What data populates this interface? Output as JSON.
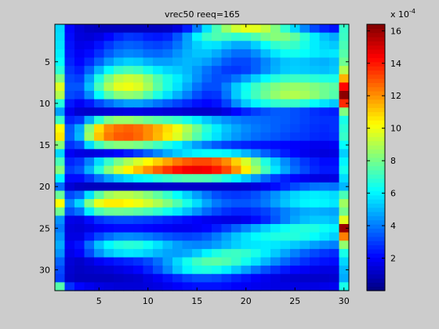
{
  "chart_data": {
    "type": "heatmap",
    "title": "vrec50 reeq=165",
    "xlim": [
      0.5,
      30.5
    ],
    "ylim": [
      0.5,
      32.5
    ],
    "y_reversed": true,
    "x_ticks": [
      5,
      10,
      15,
      20,
      25,
      30
    ],
    "x_tick_labels": [
      "5",
      "10",
      "15",
      "20",
      "25",
      "30"
    ],
    "y_ticks": [
      5,
      10,
      15,
      20,
      25,
      30
    ],
    "y_tick_labels": [
      "5",
      "10",
      "15",
      "20",
      "25",
      "30"
    ],
    "colormap": "jet",
    "colorbar": {
      "clim": [
        0,
        16.4
      ],
      "ticks": [
        2,
        4,
        6,
        8,
        10,
        12,
        14,
        16
      ],
      "tick_labels": [
        "2",
        "4",
        "6",
        "8",
        "10",
        "12",
        "14",
        "16"
      ],
      "exponent_base": "x 10",
      "exponent_power": "-4"
    },
    "grid": false,
    "matrix": [
      [
        5.5,
        2.1,
        1.4,
        1.1,
        1.0,
        1.0,
        1.0,
        1.0,
        1.0,
        1.0,
        1.0,
        1.1,
        1.5,
        2.5,
        4.0,
        5.7,
        7.3,
        8.6,
        9.5,
        9.9,
        9.8,
        9.2,
        8.2,
        6.9,
        5.5,
        4.2,
        3.2,
        2.6,
        2.3,
        7.0
      ],
      [
        5.6,
        2.2,
        1.5,
        1.4,
        1.6,
        2.1,
        2.6,
        2.9,
        2.8,
        2.5,
        2.4,
        2.6,
        3.4,
        4.6,
        6.0,
        7.0,
        7.4,
        7.2,
        6.9,
        7.0,
        7.4,
        8.0,
        8.3,
        8.2,
        7.7,
        6.8,
        5.9,
        5.2,
        4.8,
        7.1
      ],
      [
        5.7,
        2.3,
        1.7,
        1.8,
        2.3,
        2.9,
        3.4,
        3.6,
        3.5,
        3.2,
        3.1,
        3.3,
        3.9,
        4.7,
        5.4,
        5.8,
        5.7,
        5.2,
        4.8,
        4.8,
        5.4,
        6.2,
        6.9,
        7.2,
        7.0,
        6.5,
        5.9,
        5.5,
        5.3,
        7.3
      ],
      [
        5.9,
        2.4,
        1.9,
        2.2,
        2.8,
        3.5,
        4.0,
        4.2,
        4.1,
        3.8,
        3.7,
        3.9,
        4.4,
        4.9,
        5.2,
        5.2,
        4.8,
        4.2,
        3.8,
        3.8,
        4.3,
        5.1,
        5.8,
        6.3,
        6.4,
        6.2,
        5.9,
        5.7,
        5.8,
        7.5
      ],
      [
        6.2,
        2.6,
        2.1,
        2.7,
        3.6,
        4.5,
        5.1,
        5.4,
        5.3,
        4.9,
        4.6,
        4.6,
        4.8,
        5.0,
        4.9,
        4.6,
        4.1,
        3.5,
        3.2,
        3.2,
        3.6,
        4.2,
        4.8,
        5.2,
        5.3,
        5.2,
        5.0,
        4.9,
        5.1,
        7.9
      ],
      [
        6.8,
        2.9,
        2.5,
        3.6,
        5.0,
        6.2,
        7.0,
        7.3,
        7.1,
        6.5,
        5.9,
        5.5,
        5.3,
        5.0,
        4.5,
        3.9,
        3.4,
        3.0,
        2.9,
        3.1,
        3.6,
        4.3,
        4.9,
        5.3,
        5.4,
        5.3,
        5.2,
        5.1,
        5.3,
        9.0
      ],
      [
        8.2,
        3.2,
        3.0,
        4.6,
        6.6,
        8.1,
        9.1,
        9.4,
        9.2,
        8.4,
        7.4,
        6.6,
        5.9,
        5.2,
        4.4,
        3.7,
        3.3,
        3.4,
        3.9,
        4.6,
        5.4,
        6.1,
        6.7,
        7.0,
        7.1,
        7.0,
        6.8,
        6.6,
        6.5,
        11.5
      ],
      [
        9.7,
        3.4,
        3.4,
        5.1,
        7.3,
        8.9,
        9.8,
        10.0,
        9.7,
        8.8,
        7.6,
        6.6,
        5.7,
        4.8,
        3.9,
        3.3,
        3.3,
        4.1,
        5.3,
        6.3,
        7.1,
        7.7,
        8.2,
        8.5,
        8.6,
        8.5,
        8.2,
        7.9,
        7.6,
        14.3
      ],
      [
        9.0,
        3.2,
        3.0,
        4.3,
        6.2,
        7.5,
        8.3,
        8.5,
        8.3,
        7.5,
        6.6,
        5.7,
        4.9,
        4.1,
        3.3,
        2.8,
        2.9,
        3.9,
        5.3,
        6.4,
        7.2,
        7.9,
        8.5,
        8.9,
        9.0,
        8.8,
        8.4,
        7.9,
        7.5,
        16.2
      ],
      [
        6.7,
        2.4,
        1.9,
        2.4,
        3.2,
        3.8,
        4.3,
        4.6,
        4.6,
        4.3,
        3.9,
        3.5,
        3.1,
        2.7,
        2.3,
        2.1,
        2.3,
        3.1,
        4.3,
        5.3,
        6.0,
        6.5,
        6.9,
        7.1,
        7.0,
        6.7,
        6.2,
        5.7,
        5.3,
        13.7
      ],
      [
        4.6,
        1.8,
        1.3,
        1.2,
        1.3,
        1.4,
        1.5,
        1.6,
        1.6,
        1.5,
        1.5,
        1.4,
        1.4,
        1.3,
        1.2,
        1.2,
        1.3,
        1.6,
        2.1,
        2.6,
        3.0,
        3.3,
        3.5,
        3.5,
        3.3,
        3.1,
        2.8,
        2.6,
        2.5,
        8.2
      ],
      [
        7.1,
        2.6,
        2.9,
        4.8,
        6.8,
        8.1,
        8.6,
        8.6,
        8.3,
        7.9,
        7.6,
        7.3,
        7.0,
        6.5,
        5.9,
        5.3,
        4.8,
        4.4,
        4.1,
        3.9,
        3.8,
        3.7,
        3.6,
        3.5,
        3.3,
        3.1,
        2.9,
        2.8,
        2.8,
        6.5
      ],
      [
        10.2,
        3.5,
        4.8,
        8.3,
        10.8,
        12.1,
        12.6,
        12.8,
        12.6,
        12.1,
        11.5,
        10.8,
        10.0,
        9.0,
        7.9,
        6.8,
        5.9,
        5.2,
        4.7,
        4.3,
        4.0,
        3.8,
        3.6,
        3.4,
        3.2,
        3.0,
        2.8,
        2.7,
        2.8,
        6.8
      ],
      [
        10.6,
        3.6,
        5.0,
        8.7,
        11.2,
        12.4,
        12.9,
        13.0,
        12.7,
        12.1,
        11.4,
        10.6,
        9.7,
        8.6,
        7.5,
        6.5,
        5.7,
        5.0,
        4.5,
        4.1,
        3.8,
        3.6,
        3.4,
        3.2,
        3.0,
        2.9,
        2.7,
        2.6,
        2.7,
        7.0
      ],
      [
        8.3,
        2.8,
        3.3,
        5.6,
        7.2,
        8.0,
        8.3,
        8.3,
        8.1,
        7.7,
        7.2,
        6.6,
        6.0,
        5.3,
        4.6,
        4.0,
        3.5,
        3.1,
        2.8,
        2.6,
        2.4,
        2.3,
        2.2,
        2.1,
        2.0,
        1.9,
        1.8,
        1.8,
        1.9,
        6.2
      ],
      [
        5.5,
        1.9,
        1.6,
        1.5,
        1.6,
        1.8,
        2.1,
        2.5,
        3.0,
        3.6,
        4.2,
        4.8,
        5.3,
        5.7,
        6.0,
        6.2,
        6.2,
        6.0,
        5.6,
        5.0,
        4.3,
        3.6,
        3.0,
        2.5,
        2.1,
        1.8,
        1.6,
        1.5,
        1.6,
        5.4
      ],
      [
        7.3,
        2.6,
        2.9,
        4.1,
        5.6,
        7.0,
        8.1,
        8.9,
        9.6,
        10.3,
        11.0,
        11.7,
        12.4,
        12.9,
        13.2,
        13.2,
        12.8,
        12.1,
        11.0,
        9.6,
        8.1,
        6.6,
        5.3,
        4.3,
        3.5,
        2.9,
        2.5,
        2.2,
        2.2,
        6.0
      ],
      [
        8.3,
        3.0,
        3.4,
        4.9,
        6.7,
        8.3,
        9.5,
        10.4,
        11.2,
        12.0,
        12.8,
        13.5,
        14.1,
        14.5,
        14.6,
        14.5,
        14.0,
        13.2,
        12.0,
        10.5,
        8.8,
        7.2,
        5.8,
        4.7,
        3.8,
        3.2,
        2.7,
        2.4,
        2.4,
        6.4
      ],
      [
        6.0,
        2.2,
        2.2,
        2.9,
        3.8,
        4.6,
        5.2,
        5.6,
        6.0,
        6.3,
        6.7,
        7.0,
        7.3,
        7.5,
        7.5,
        7.4,
        7.1,
        6.6,
        6.0,
        5.3,
        4.5,
        3.7,
        3.0,
        2.5,
        2.1,
        1.8,
        1.6,
        1.5,
        1.6,
        5.6
      ],
      [
        3.8,
        1.4,
        1.1,
        1.0,
        1.0,
        1.0,
        1.0,
        1.0,
        1.1,
        1.1,
        1.1,
        1.2,
        1.2,
        1.2,
        1.2,
        1.2,
        1.2,
        1.2,
        1.2,
        1.3,
        1.5,
        1.8,
        2.2,
        2.7,
        3.2,
        3.6,
        3.9,
        4.0,
        3.9,
        5.0
      ],
      [
        7.8,
        3.2,
        3.7,
        5.7,
        7.6,
        8.7,
        9.1,
        9.1,
        8.8,
        8.3,
        7.7,
        7.0,
        6.2,
        5.4,
        4.6,
        3.9,
        3.3,
        3.0,
        2.9,
        3.0,
        3.3,
        3.8,
        4.4,
        5.0,
        5.5,
        5.8,
        5.9,
        5.8,
        5.6,
        7.3
      ],
      [
        10.2,
        4.2,
        5.5,
        8.2,
        9.9,
        10.5,
        10.5,
        10.3,
        10.0,
        9.5,
        8.9,
        8.2,
        7.4,
        6.5,
        5.6,
        4.7,
        4.0,
        3.6,
        3.4,
        3.4,
        3.6,
        4.0,
        4.6,
        5.2,
        5.7,
        6.0,
        6.1,
        6.0,
        5.8,
        8.7
      ],
      [
        7.9,
        3.3,
        3.9,
        5.9,
        7.3,
        7.8,
        7.9,
        7.8,
        7.6,
        7.3,
        6.9,
        6.4,
        5.8,
        5.1,
        4.4,
        3.7,
        3.2,
        2.8,
        2.6,
        2.6,
        2.8,
        3.1,
        3.6,
        4.1,
        4.5,
        4.8,
        4.9,
        4.8,
        4.7,
        8.0
      ],
      [
        4.4,
        1.7,
        1.6,
        2.2,
        2.8,
        3.1,
        3.2,
        3.2,
        3.1,
        3.0,
        2.8,
        2.6,
        2.4,
        2.2,
        2.0,
        1.8,
        1.7,
        1.6,
        1.6,
        1.8,
        2.2,
        2.7,
        3.4,
        4.1,
        4.7,
        5.1,
        5.3,
        5.3,
        5.1,
        9.8
      ],
      [
        4.0,
        1.5,
        1.4,
        1.6,
        1.9,
        2.1,
        2.2,
        2.2,
        2.2,
        2.1,
        2.0,
        1.9,
        1.8,
        1.8,
        1.9,
        2.1,
        2.5,
        3.0,
        3.6,
        4.2,
        4.8,
        5.4,
        5.9,
        6.3,
        6.6,
        6.7,
        6.6,
        6.3,
        6.0,
        16.0
      ],
      [
        4.4,
        1.6,
        1.6,
        2.4,
        3.2,
        3.8,
        4.2,
        4.3,
        4.2,
        4.0,
        3.7,
        3.4,
        3.2,
        3.1,
        3.2,
        3.5,
        4.0,
        4.6,
        5.2,
        5.7,
        6.1,
        6.4,
        6.6,
        6.7,
        6.7,
        6.5,
        6.2,
        5.8,
        5.4,
        12.3
      ],
      [
        4.8,
        1.9,
        2.3,
        3.8,
        5.2,
        6.1,
        6.6,
        6.8,
        6.7,
        6.3,
        5.7,
        5.1,
        4.6,
        4.3,
        4.2,
        4.3,
        4.6,
        5.0,
        5.4,
        5.7,
        5.8,
        5.9,
        5.8,
        5.6,
        5.3,
        5.0,
        4.6,
        4.3,
        4.1,
        8.5
      ],
      [
        4.4,
        1.7,
        2.0,
        3.2,
        4.4,
        5.2,
        5.6,
        5.8,
        5.7,
        5.4,
        5.0,
        4.7,
        4.6,
        4.8,
        5.3,
        6.0,
        6.6,
        7.0,
        7.1,
        6.9,
        6.5,
        5.9,
        5.3,
        4.7,
        4.1,
        3.6,
        3.2,
        2.9,
        2.7,
        6.5
      ],
      [
        3.6,
        1.4,
        1.2,
        1.5,
        1.9,
        2.2,
        2.4,
        2.6,
        2.8,
        3.2,
        3.8,
        4.6,
        5.5,
        6.4,
        7.1,
        7.5,
        7.6,
        7.4,
        7.0,
        6.4,
        5.7,
        5.0,
        4.3,
        3.7,
        3.2,
        2.8,
        2.5,
        2.3,
        2.2,
        5.5
      ],
      [
        3.2,
        1.3,
        1.1,
        1.2,
        1.3,
        1.4,
        1.6,
        1.8,
        2.1,
        2.6,
        3.3,
        4.2,
        5.2,
        6.0,
        6.5,
        6.6,
        6.4,
        5.9,
        5.3,
        4.6,
        3.9,
        3.3,
        2.8,
        2.4,
        2.1,
        1.9,
        1.7,
        1.6,
        1.6,
        5.0
      ],
      [
        3.0,
        1.2,
        1.0,
        1.0,
        1.0,
        1.0,
        1.1,
        1.2,
        1.3,
        1.6,
        1.9,
        2.3,
        2.7,
        3.1,
        3.3,
        3.3,
        3.2,
        2.9,
        2.6,
        2.3,
        2.0,
        1.8,
        1.6,
        1.4,
        1.3,
        1.2,
        1.2,
        1.2,
        1.3,
        4.8
      ],
      [
        7.5,
        2.8,
        2.1,
        1.8,
        1.6,
        1.5,
        1.4,
        1.4,
        1.4,
        1.5,
        1.6,
        1.8,
        2.0,
        2.2,
        2.3,
        2.3,
        2.3,
        2.2,
        2.0,
        1.9,
        1.8,
        1.7,
        1.6,
        1.6,
        1.6,
        1.6,
        1.6,
        1.7,
        1.8,
        6.5
      ]
    ]
  }
}
